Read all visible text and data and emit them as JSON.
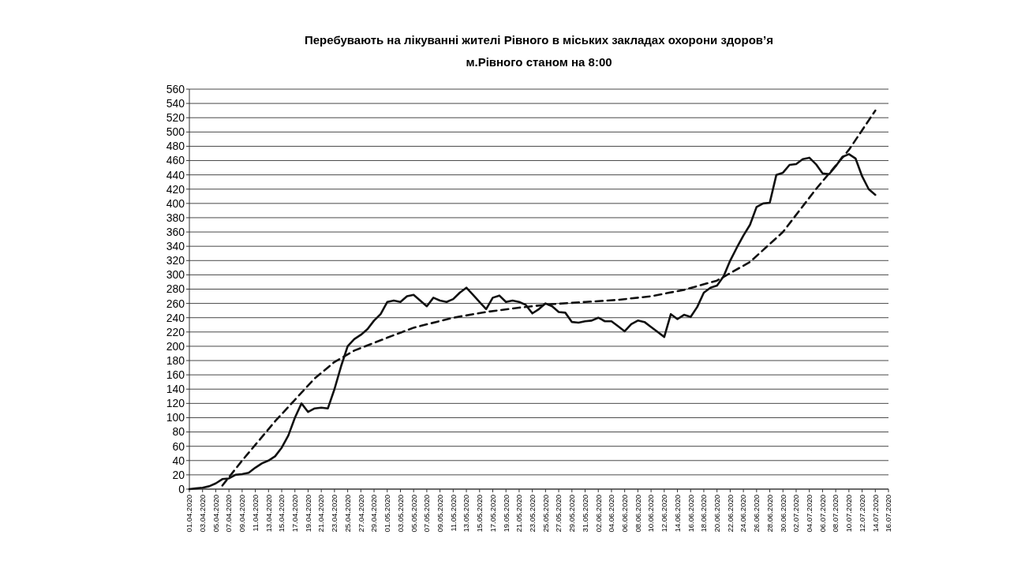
{
  "chart_data": {
    "type": "line",
    "title": "Перебувають на лікуванні жителі Рівного в міських закладах охорони здоров’я",
    "subtitle": "м.Рівного   станом на 8:00",
    "x": [
      "2020-04-01",
      "2020-04-02",
      "2020-04-03",
      "2020-04-04",
      "2020-04-05",
      "2020-04-06",
      "2020-04-07",
      "2020-04-08",
      "2020-04-09",
      "2020-04-10",
      "2020-04-11",
      "2020-04-12",
      "2020-04-13",
      "2020-04-14",
      "2020-04-15",
      "2020-04-16",
      "2020-04-17",
      "2020-04-18",
      "2020-04-19",
      "2020-04-20",
      "2020-04-21",
      "2020-04-22",
      "2020-04-23",
      "2020-04-24",
      "2020-04-25",
      "2020-04-26",
      "2020-04-27",
      "2020-04-28",
      "2020-04-29",
      "2020-04-30",
      "2020-05-01",
      "2020-05-02",
      "2020-05-03",
      "2020-05-04",
      "2020-05-05",
      "2020-05-06",
      "2020-05-07",
      "2020-05-08",
      "2020-05-09",
      "2020-05-10",
      "2020-05-11",
      "2020-05-12",
      "2020-05-13",
      "2020-05-14",
      "2020-05-15",
      "2020-05-16",
      "2020-05-17",
      "2020-05-18",
      "2020-05-19",
      "2020-05-20",
      "2020-05-21",
      "2020-05-22",
      "2020-05-23",
      "2020-05-24",
      "2020-05-25",
      "2020-05-26",
      "2020-05-27",
      "2020-05-28",
      "2020-05-29",
      "2020-05-30",
      "2020-05-31",
      "2020-06-01",
      "2020-06-02",
      "2020-06-03",
      "2020-06-04",
      "2020-06-05",
      "2020-06-06",
      "2020-06-07",
      "2020-06-08",
      "2020-06-09",
      "2020-06-10",
      "2020-06-11",
      "2020-06-12",
      "2020-06-13",
      "2020-06-14",
      "2020-06-15",
      "2020-06-16",
      "2020-06-17",
      "2020-06-18",
      "2020-06-19",
      "2020-06-20",
      "2020-06-21",
      "2020-06-22",
      "2020-06-23",
      "2020-06-24",
      "2020-06-25",
      "2020-06-26",
      "2020-06-27",
      "2020-06-28",
      "2020-06-29",
      "2020-06-30",
      "2020-07-01",
      "2020-07-02",
      "2020-07-03",
      "2020-07-04",
      "2020-07-05",
      "2020-07-06",
      "2020-07-07",
      "2020-07-08",
      "2020-07-09",
      "2020-07-10",
      "2020-07-11",
      "2020-07-12",
      "2020-07-13",
      "2020-07-14"
    ],
    "series": [
      {
        "color": "#111111",
        "line_style": "solid",
        "values": [
          0,
          1,
          2,
          4,
          8,
          14,
          15,
          20,
          21,
          23,
          30,
          36,
          40,
          46,
          58,
          75,
          100,
          120,
          108,
          113,
          114,
          113,
          140,
          172,
          200,
          210,
          216,
          224,
          236,
          245,
          262,
          264,
          262,
          270,
          272,
          264,
          256,
          268,
          264,
          262,
          266,
          275,
          282,
          272,
          262,
          252,
          268,
          271,
          262,
          264,
          262,
          258,
          246,
          252,
          260,
          256,
          248,
          247,
          234,
          233,
          235,
          236,
          240,
          235,
          235,
          228,
          221,
          231,
          236,
          234,
          227,
          220,
          213,
          245,
          238,
          244,
          241,
          255,
          275,
          282,
          285,
          298,
          320,
          338,
          355,
          370,
          395,
          400,
          401,
          440,
          443,
          454,
          455,
          462,
          464,
          455,
          442,
          441,
          452,
          465,
          469,
          463,
          438,
          420,
          412
        ]
      },
      {
        "type": "line",
        "color": "#111111",
        "line_style": "dashed",
        "x": [
          "2020-04-06",
          "2020-04-09",
          "2020-04-11",
          "2020-04-14",
          "2020-04-17",
          "2020-04-20",
          "2020-04-23",
          "2020-04-26",
          "2020-05-01",
          "2020-05-05",
          "2020-05-11",
          "2020-05-16",
          "2020-05-21",
          "2020-05-26",
          "2020-05-31",
          "2020-06-05",
          "2020-06-10",
          "2020-06-15",
          "2020-06-20",
          "2020-06-25",
          "2020-06-30",
          "2020-07-05",
          "2020-07-10",
          "2020-07-14"
        ],
        "values": [
          5,
          40,
          62,
          95,
          125,
          155,
          178,
          194,
          212,
          226,
          240,
          248,
          254,
          259,
          262,
          265,
          270,
          279,
          292,
          318,
          360,
          420,
          475,
          530
        ]
      }
    ],
    "xlim": [
      "2020-04-01",
      "2020-07-16"
    ],
    "xticks": [
      {
        "value": "2020-04-01",
        "label": "01.04.2020"
      },
      {
        "value": "2020-04-03",
        "label": "03.04.2020"
      },
      {
        "value": "2020-04-05",
        "label": "05.04.2020"
      },
      {
        "value": "2020-04-07",
        "label": "07.04.2020"
      },
      {
        "value": "2020-04-09",
        "label": "09.04.2020"
      },
      {
        "value": "2020-04-11",
        "label": "11.04.2020"
      },
      {
        "value": "2020-04-13",
        "label": "13.04.2020"
      },
      {
        "value": "2020-04-15",
        "label": "15.04.2020"
      },
      {
        "value": "2020-04-17",
        "label": "17.04.2020"
      },
      {
        "value": "2020-04-19",
        "label": "19.04.2020"
      },
      {
        "value": "2020-04-21",
        "label": "21.04.2020"
      },
      {
        "value": "2020-04-23",
        "label": "23.04.2020"
      },
      {
        "value": "2020-04-25",
        "label": "25.04.2020"
      },
      {
        "value": "2020-04-27",
        "label": "27.04.2020"
      },
      {
        "value": "2020-04-29",
        "label": "29.04.2020"
      },
      {
        "value": "2020-05-01",
        "label": "01.05.2020"
      },
      {
        "value": "2020-05-03",
        "label": "03.05.2020"
      },
      {
        "value": "2020-05-05",
        "label": "05.05.2020"
      },
      {
        "value": "2020-05-07",
        "label": "07.05.2020"
      },
      {
        "value": "2020-05-09",
        "label": "09.05.2020"
      },
      {
        "value": "2020-05-11",
        "label": "11.05.2020"
      },
      {
        "value": "2020-05-13",
        "label": "13.05.2020"
      },
      {
        "value": "2020-05-15",
        "label": "15.05.2020"
      },
      {
        "value": "2020-05-17",
        "label": "17.05.2020"
      },
      {
        "value": "2020-05-19",
        "label": "19.05.2020"
      },
      {
        "value": "2020-05-21",
        "label": "21.05.2020"
      },
      {
        "value": "2020-05-23",
        "label": "23.05.2020"
      },
      {
        "value": "2020-05-25",
        "label": "25.05.2020"
      },
      {
        "value": "2020-05-27",
        "label": "27.05.2020"
      },
      {
        "value": "2020-05-29",
        "label": "29.05.2020"
      },
      {
        "value": "2020-05-31",
        "label": "31.05.2020"
      },
      {
        "value": "2020-06-02",
        "label": "02.06.2020"
      },
      {
        "value": "2020-06-04",
        "label": "04.06.2020"
      },
      {
        "value": "2020-06-06",
        "label": "06.06.2020"
      },
      {
        "value": "2020-06-08",
        "label": "08.06.2020"
      },
      {
        "value": "2020-06-10",
        "label": "10.06.2020"
      },
      {
        "value": "2020-06-12",
        "label": "12.06.2020"
      },
      {
        "value": "2020-06-14",
        "label": "14.06.2020"
      },
      {
        "value": "2020-06-16",
        "label": "16.06.2020"
      },
      {
        "value": "2020-06-18",
        "label": "18.06.2020"
      },
      {
        "value": "2020-06-20",
        "label": "20.06.2020"
      },
      {
        "value": "2020-06-22",
        "label": "22.06.2020"
      },
      {
        "value": "2020-06-24",
        "label": "24.06.2020"
      },
      {
        "value": "2020-06-26",
        "label": "26.06.2020"
      },
      {
        "value": "2020-06-28",
        "label": "28.06.2020"
      },
      {
        "value": "2020-06-30",
        "label": "30.06.2020"
      },
      {
        "value": "2020-07-02",
        "label": "02.07.2020"
      },
      {
        "value": "2020-07-04",
        "label": "04.07.2020"
      },
      {
        "value": "2020-07-06",
        "label": "06.07.2020"
      },
      {
        "value": "2020-07-08",
        "label": "08.07.2020"
      },
      {
        "value": "2020-07-10",
        "label": "10.07.2020"
      },
      {
        "value": "2020-07-12",
        "label": "12.07.2020"
      },
      {
        "value": "2020-07-14",
        "label": "14.07.2020"
      },
      {
        "value": "2020-07-16",
        "label": "16.07.2020"
      }
    ],
    "ylim": [
      0,
      560
    ],
    "yticks": [
      0,
      20,
      40,
      60,
      80,
      100,
      120,
      140,
      160,
      180,
      200,
      220,
      240,
      260,
      280,
      300,
      320,
      340,
      360,
      380,
      400,
      420,
      440,
      460,
      480,
      500,
      520,
      540,
      560
    ],
    "grid": "y"
  }
}
